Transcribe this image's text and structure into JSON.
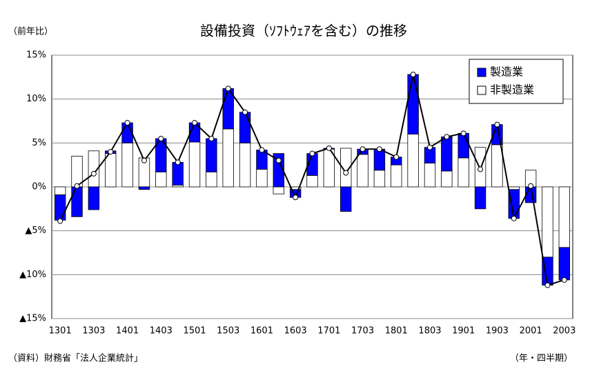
{
  "chart_data": {
    "type": "bar",
    "stacked": true,
    "title": "設備投資（ｿﾌﾄｳｪｱを含む）の推移",
    "y_label": "（前年比）",
    "x_label": "（年・四半期）",
    "source": "（資料）財務省「法人企業統計」",
    "categories": [
      "1301",
      null,
      "1303",
      null,
      "1401",
      null,
      "1403",
      null,
      "1501",
      null,
      "1503",
      null,
      "1601",
      null,
      "1603",
      null,
      "1701",
      null,
      "1703",
      null,
      "1801",
      null,
      "1803",
      null,
      "1901",
      null,
      "1903",
      null,
      "2001",
      null,
      "2003"
    ],
    "series": [
      {
        "name": "非製造業",
        "color": "#ffffff",
        "values": [
          -0.9,
          3.5,
          4.1,
          3.8,
          5.0,
          3.3,
          1.7,
          0.2,
          5.1,
          1.7,
          6.6,
          5.0,
          2.0,
          -0.8,
          -0.3,
          1.3,
          4.3,
          4.4,
          3.7,
          1.9,
          2.5,
          6.0,
          2.7,
          1.8,
          3.3,
          4.5,
          4.8,
          -0.3,
          1.9,
          -8.0,
          -6.9
        ]
      },
      {
        "name": "製造業",
        "color": "#0000ff",
        "values": [
          -2.9,
          -3.4,
          -2.6,
          0.3,
          2.3,
          -0.3,
          3.8,
          2.6,
          2.2,
          3.8,
          4.6,
          3.5,
          2.2,
          3.8,
          -0.9,
          2.5,
          0.1,
          -2.8,
          0.6,
          2.4,
          0.9,
          6.8,
          1.8,
          3.9,
          2.8,
          -2.5,
          2.3,
          -3.3,
          -1.8,
          -3.2,
          -3.7
        ]
      },
      {
        "type": "line",
        "color": "#000000",
        "values": [
          -3.9,
          0.1,
          1.5,
          4.0,
          7.3,
          3.0,
          5.5,
          2.8,
          7.3,
          5.5,
          11.2,
          8.5,
          4.2,
          3.0,
          -1.2,
          3.8,
          4.4,
          1.6,
          4.3,
          4.3,
          3.4,
          12.8,
          4.5,
          5.7,
          6.1,
          2.0,
          7.1,
          -3.6,
          0.1,
          -11.2,
          -10.6
        ]
      }
    ],
    "ylim": [
      -15,
      15
    ],
    "yticks": [
      {
        "value": -15,
        "label": "▲15%"
      },
      {
        "value": -10,
        "label": "▲10%"
      },
      {
        "value": -5,
        "label": "▲5%"
      },
      {
        "value": 0,
        "label": "0%"
      },
      {
        "value": 5,
        "label": "5%"
      },
      {
        "value": 10,
        "label": "10%"
      },
      {
        "value": 15,
        "label": "15%"
      }
    ],
    "grid": true,
    "legend": "top-right"
  }
}
